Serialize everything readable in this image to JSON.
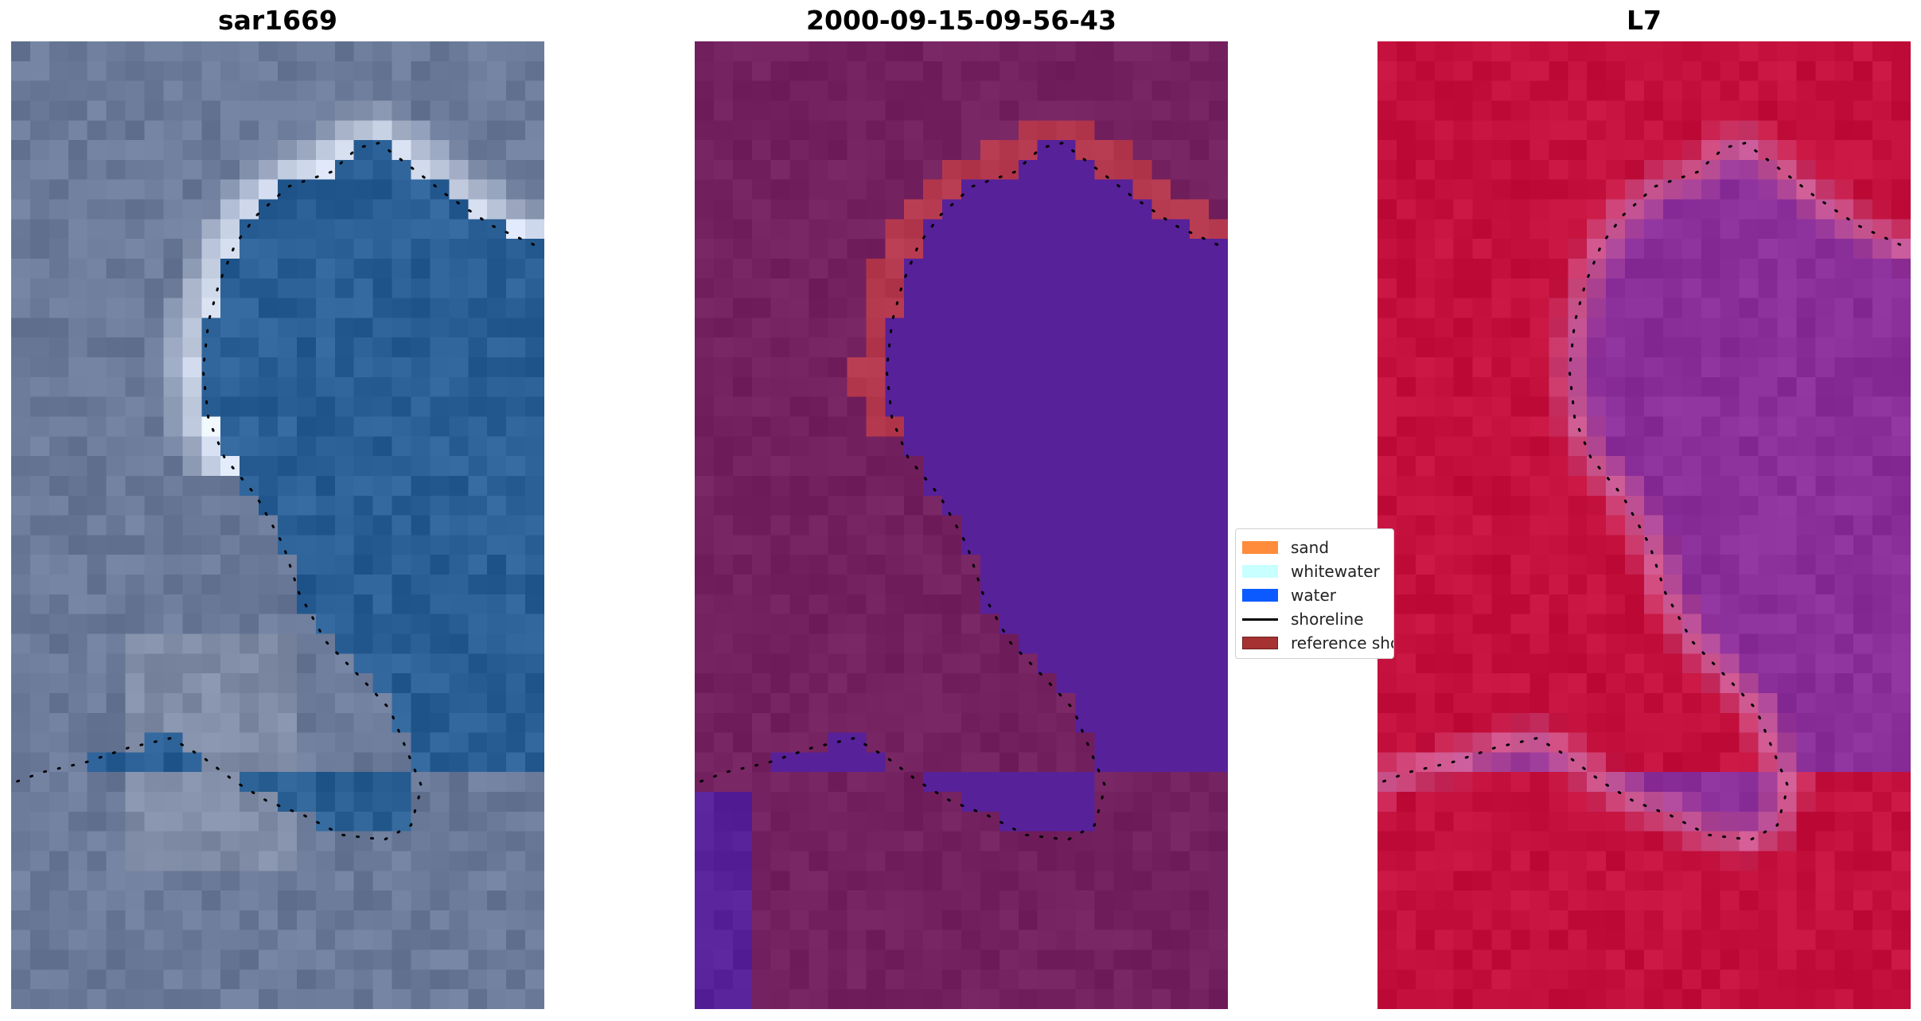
{
  "panels": [
    {
      "title": "sar1669",
      "kind": "rgb"
    },
    {
      "title": "2000-09-15-09-56-43",
      "kind": "classified"
    },
    {
      "title": "L7",
      "kind": "index"
    }
  ],
  "legend": {
    "items": [
      {
        "label": "sand",
        "color": "#ff8c3b",
        "type": "patch"
      },
      {
        "label": "whitewater",
        "color": "#c8ffff",
        "type": "patch"
      },
      {
        "label": "water",
        "color": "#0a5aff",
        "type": "patch"
      },
      {
        "label": "shoreline",
        "color": "#000000",
        "type": "line"
      },
      {
        "label": "reference shoreline buffer",
        "color": "#a63232",
        "type": "patch"
      }
    ]
  },
  "colors": {
    "land_rgb": "#6b7a99",
    "water_rgb": "#2a5f95",
    "surf_rgb": "#e8f0ff",
    "land_class": "#74215f",
    "buffer_class": "#b5394e",
    "water_class": "#57219a",
    "land_index": "#c4103c",
    "water_index": "#8a2e9a",
    "edge_index": "#cf5d95"
  }
}
